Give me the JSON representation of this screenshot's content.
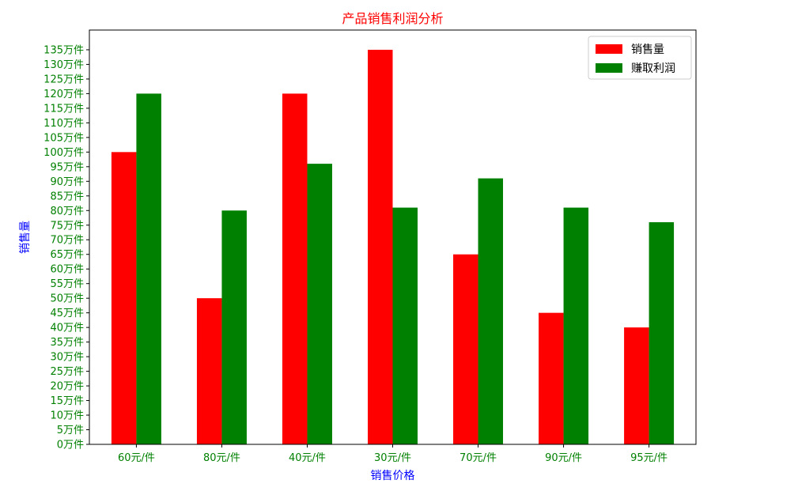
{
  "chart_data": {
    "type": "bar",
    "title": "产品销售利润分析",
    "xlabel": "销售价格",
    "ylabel": "销售量",
    "categories": [
      "60元/件",
      "80元/件",
      "40元/件",
      "30元/件",
      "70元/件",
      "90元/件",
      "95元/件"
    ],
    "series": [
      {
        "name": "销售量",
        "color": "#ff0000",
        "values": [
          100,
          50,
          120,
          135,
          65,
          45,
          40
        ]
      },
      {
        "name": "赚取利润",
        "color": "#008000",
        "values": [
          120,
          80,
          96,
          81,
          91,
          81,
          76
        ]
      }
    ],
    "yticks": [
      "0万件",
      "5万件",
      "10万件",
      "15万件",
      "20万件",
      "25万件",
      "30万件",
      "35万件",
      "40万件",
      "45万件",
      "50万件",
      "55万件",
      "60万件",
      "65万件",
      "70万件",
      "75万件",
      "80万件",
      "85万件",
      "90万件",
      "95万件",
      "100万件",
      "105万件",
      "110万件",
      "115万件",
      "120万件",
      "125万件",
      "130万件",
      "135万件"
    ],
    "ytick_values": [
      0,
      5,
      10,
      15,
      20,
      25,
      30,
      35,
      40,
      45,
      50,
      55,
      60,
      65,
      70,
      75,
      80,
      85,
      90,
      95,
      100,
      105,
      110,
      115,
      120,
      125,
      130,
      135
    ],
    "ylim": [
      0,
      141.75
    ],
    "grid": false,
    "legend_position": "top-right"
  }
}
